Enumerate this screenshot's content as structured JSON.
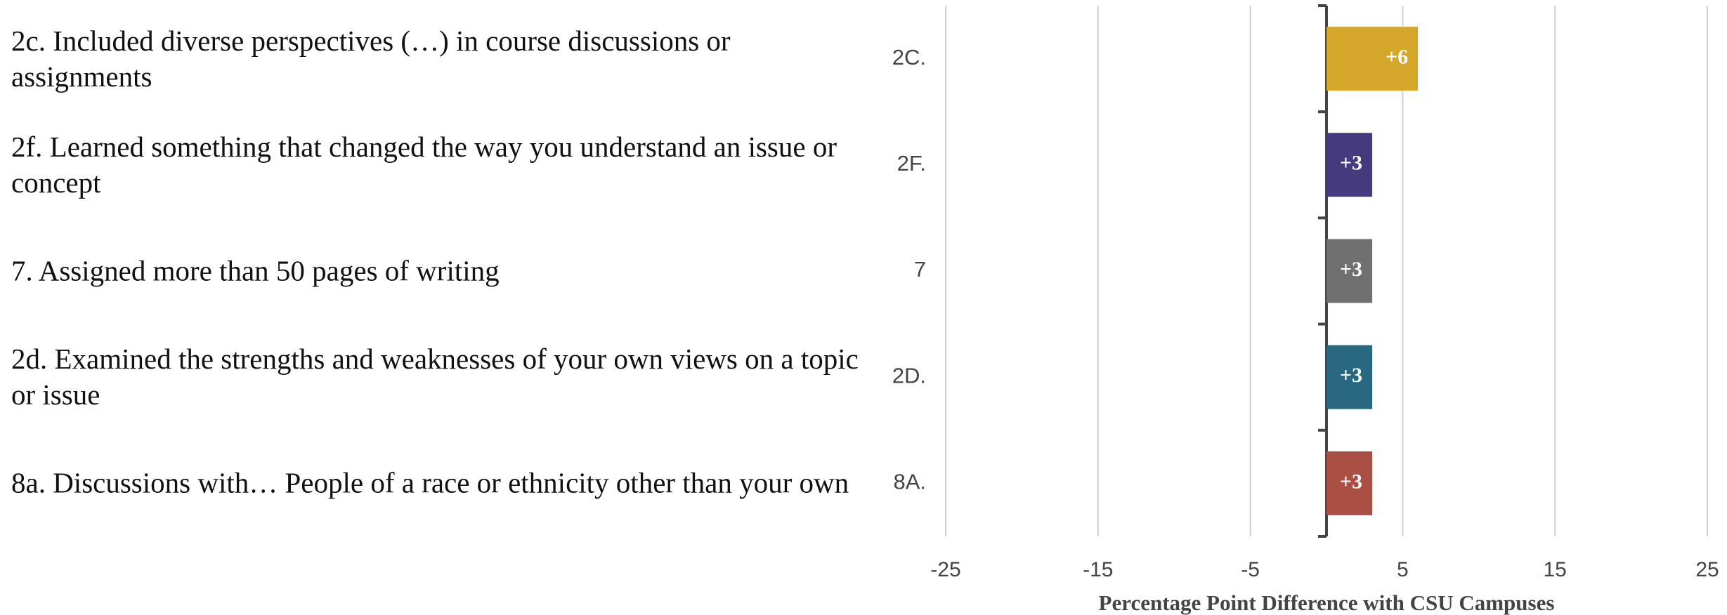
{
  "chart_data": {
    "type": "hbar",
    "descriptions": [
      "2c. Included diverse perspectives (…) in course discussions or assignments",
      "2f. Learned something that changed the way you understand an issue or concept",
      "7. Assigned more than 50 pages of writing",
      "2d. Examined the strengths and weaknesses of your own views on a topic or issue",
      "8a. Discussions with… People of a race or ethnicity other than your own"
    ],
    "categories": [
      "2C.",
      "2F.",
      "7",
      "2D.",
      "8A."
    ],
    "values": [
      6,
      3,
      3,
      3,
      3
    ],
    "value_labels": [
      "+6",
      "+3",
      "+3",
      "+3",
      "+3"
    ],
    "colors": [
      "#d4a62a",
      "#463a7f",
      "#707070",
      "#2a6780",
      "#a94f44"
    ],
    "xlim": [
      -25,
      25
    ],
    "xticks": [
      -25,
      -15,
      -5,
      5,
      15,
      25
    ],
    "xlabel": "Percentage Point Difference with CSU Campuses",
    "grid": true
  }
}
